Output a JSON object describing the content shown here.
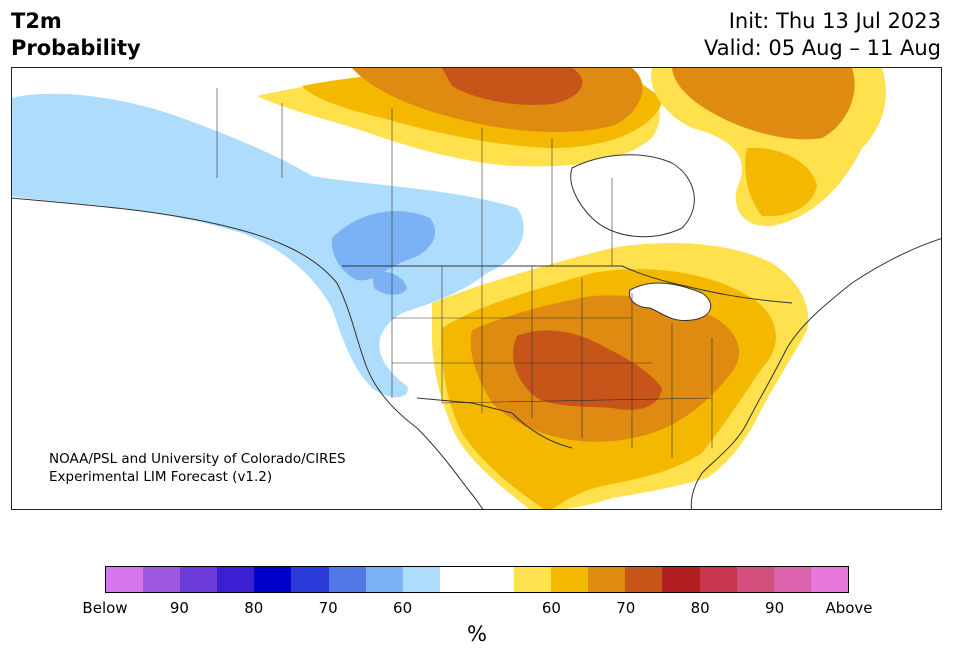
{
  "header": {
    "title_line1": "T2m",
    "title_line2": "Probability",
    "init_text": "Init: Thu 13 Jul 2023",
    "valid_text": "Valid: 05 Aug – 11 Aug"
  },
  "map": {
    "region": "North America",
    "credit_line1": "NOAA/PSL and University of Colorado/CIRES",
    "credit_line2": "Experimental LIM Forecast (v1.2)"
  },
  "colorbar": {
    "unit_label": "%",
    "segments": [
      "#d576ea",
      "#9b57e0",
      "#6c3ad8",
      "#3a1fd3",
      "#0000cc",
      "#2a3ad8",
      "#5278e8",
      "#7ab2f5",
      "#aedcfc",
      "#ffffff",
      "#ffffff",
      "#ffe04d",
      "#f4b800",
      "#df8a10",
      "#c75418",
      "#b21f22",
      "#c6374f",
      "#d24f7e",
      "#dc62ad",
      "#e878dc"
    ],
    "ticks": [
      {
        "label": "Below"
      },
      {
        "label": "90"
      },
      {
        "label": "80"
      },
      {
        "label": "70"
      },
      {
        "label": "60"
      },
      {
        "label": "60"
      },
      {
        "label": "70"
      },
      {
        "label": "80"
      },
      {
        "label": "90"
      },
      {
        "label": "Above"
      }
    ]
  }
}
